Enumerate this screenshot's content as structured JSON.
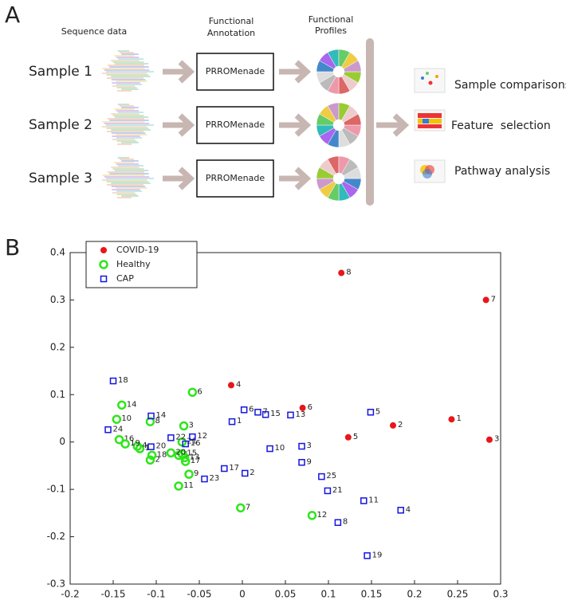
{
  "panel_a": {
    "label": "A",
    "sequence_header": "Sequence data",
    "annotation_header": [
      "Functional",
      "Annotation"
    ],
    "profiles_header": [
      "Functional",
      "Profiles"
    ],
    "samples": [
      "Sample 1",
      "Sample 2",
      "Sample 3"
    ],
    "tool": [
      "PRROMenade",
      "PRROMenade",
      "PRROMenade"
    ],
    "outputs": [
      "Sample comparisons",
      "Feature  selection",
      "Pathway analysis"
    ]
  },
  "chart_data": {
    "type": "scatter",
    "panel_label": "B",
    "xlim": [
      -0.2,
      0.3
    ],
    "xticks": [
      -0.2,
      -0.15,
      -0.1,
      -0.05,
      0,
      0.05,
      0.1,
      0.15,
      0.2,
      0.25,
      0.3
    ],
    "ylim": [
      -0.3,
      0.4
    ],
    "yticks": [
      -0.3,
      -0.2,
      -0.1,
      0,
      0.1,
      0.2,
      0.3,
      0.4
    ],
    "legend": "upper left",
    "series": [
      {
        "name": "COVID-19",
        "color": "#e8161b",
        "marker": "filled-circle",
        "point_labels": [
          "1",
          "2",
          "3",
          "4",
          "5",
          "6",
          "7",
          "8"
        ],
        "x": [
          0.243,
          0.175,
          0.287,
          -0.013,
          0.123,
          0.07,
          0.283,
          0.115
        ],
        "y": [
          0.048,
          0.035,
          0.005,
          0.12,
          0.01,
          0.072,
          0.3,
          0.357
        ]
      },
      {
        "name": "Healthy",
        "color": "#2ee61b",
        "marker": "open-circle",
        "point_labels": [
          "1",
          "2",
          "3",
          "4",
          "5",
          "6",
          "7",
          "8",
          "9",
          "10",
          "11",
          "12",
          "13",
          "14",
          "15",
          "16",
          "17",
          "18",
          "19",
          "20",
          "21"
        ],
        "x": [
          -0.119,
          -0.107,
          -0.068,
          -0.122,
          -0.074,
          -0.058,
          -0.002,
          -0.107,
          -0.062,
          -0.146,
          -0.074,
          0.081,
          -0.067,
          -0.14,
          -0.07,
          -0.143,
          -0.066,
          -0.105,
          -0.136,
          -0.083,
          -0.07
        ],
        "y": [
          -0.014,
          -0.038,
          0.034,
          -0.009,
          -0.028,
          0.105,
          -0.139,
          0.043,
          -0.068,
          0.048,
          -0.093,
          -0.155,
          -0.033,
          0.078,
          -0.025,
          0.005,
          -0.041,
          -0.028,
          -0.004,
          -0.023,
          0.0
        ]
      },
      {
        "name": "CAP",
        "color": "#1515e0",
        "marker": "open-square",
        "point_labels": [
          "1",
          "2",
          "3",
          "4",
          "5",
          "6",
          "7",
          "8",
          "9",
          "10",
          "11",
          "12",
          "13",
          "14",
          "15",
          "16",
          "17",
          "18",
          "19",
          "20",
          "21",
          "22",
          "23",
          "24",
          "25"
        ],
        "x": [
          -0.012,
          0.003,
          0.069,
          0.184,
          0.149,
          0.002,
          0.018,
          0.111,
          0.069,
          0.032,
          0.141,
          -0.058,
          0.056,
          -0.106,
          0.027,
          -0.066,
          -0.021,
          -0.15,
          0.145,
          -0.106,
          0.099,
          -0.083,
          -0.044,
          -0.156,
          0.092
        ],
        "y": [
          0.043,
          -0.066,
          -0.009,
          -0.144,
          0.063,
          0.068,
          0.063,
          -0.17,
          -0.043,
          -0.014,
          -0.124,
          0.011,
          0.057,
          0.055,
          0.058,
          -0.004,
          -0.056,
          0.129,
          -0.24,
          -0.01,
          -0.103,
          0.009,
          -0.078,
          0.026,
          -0.073
        ]
      }
    ]
  }
}
